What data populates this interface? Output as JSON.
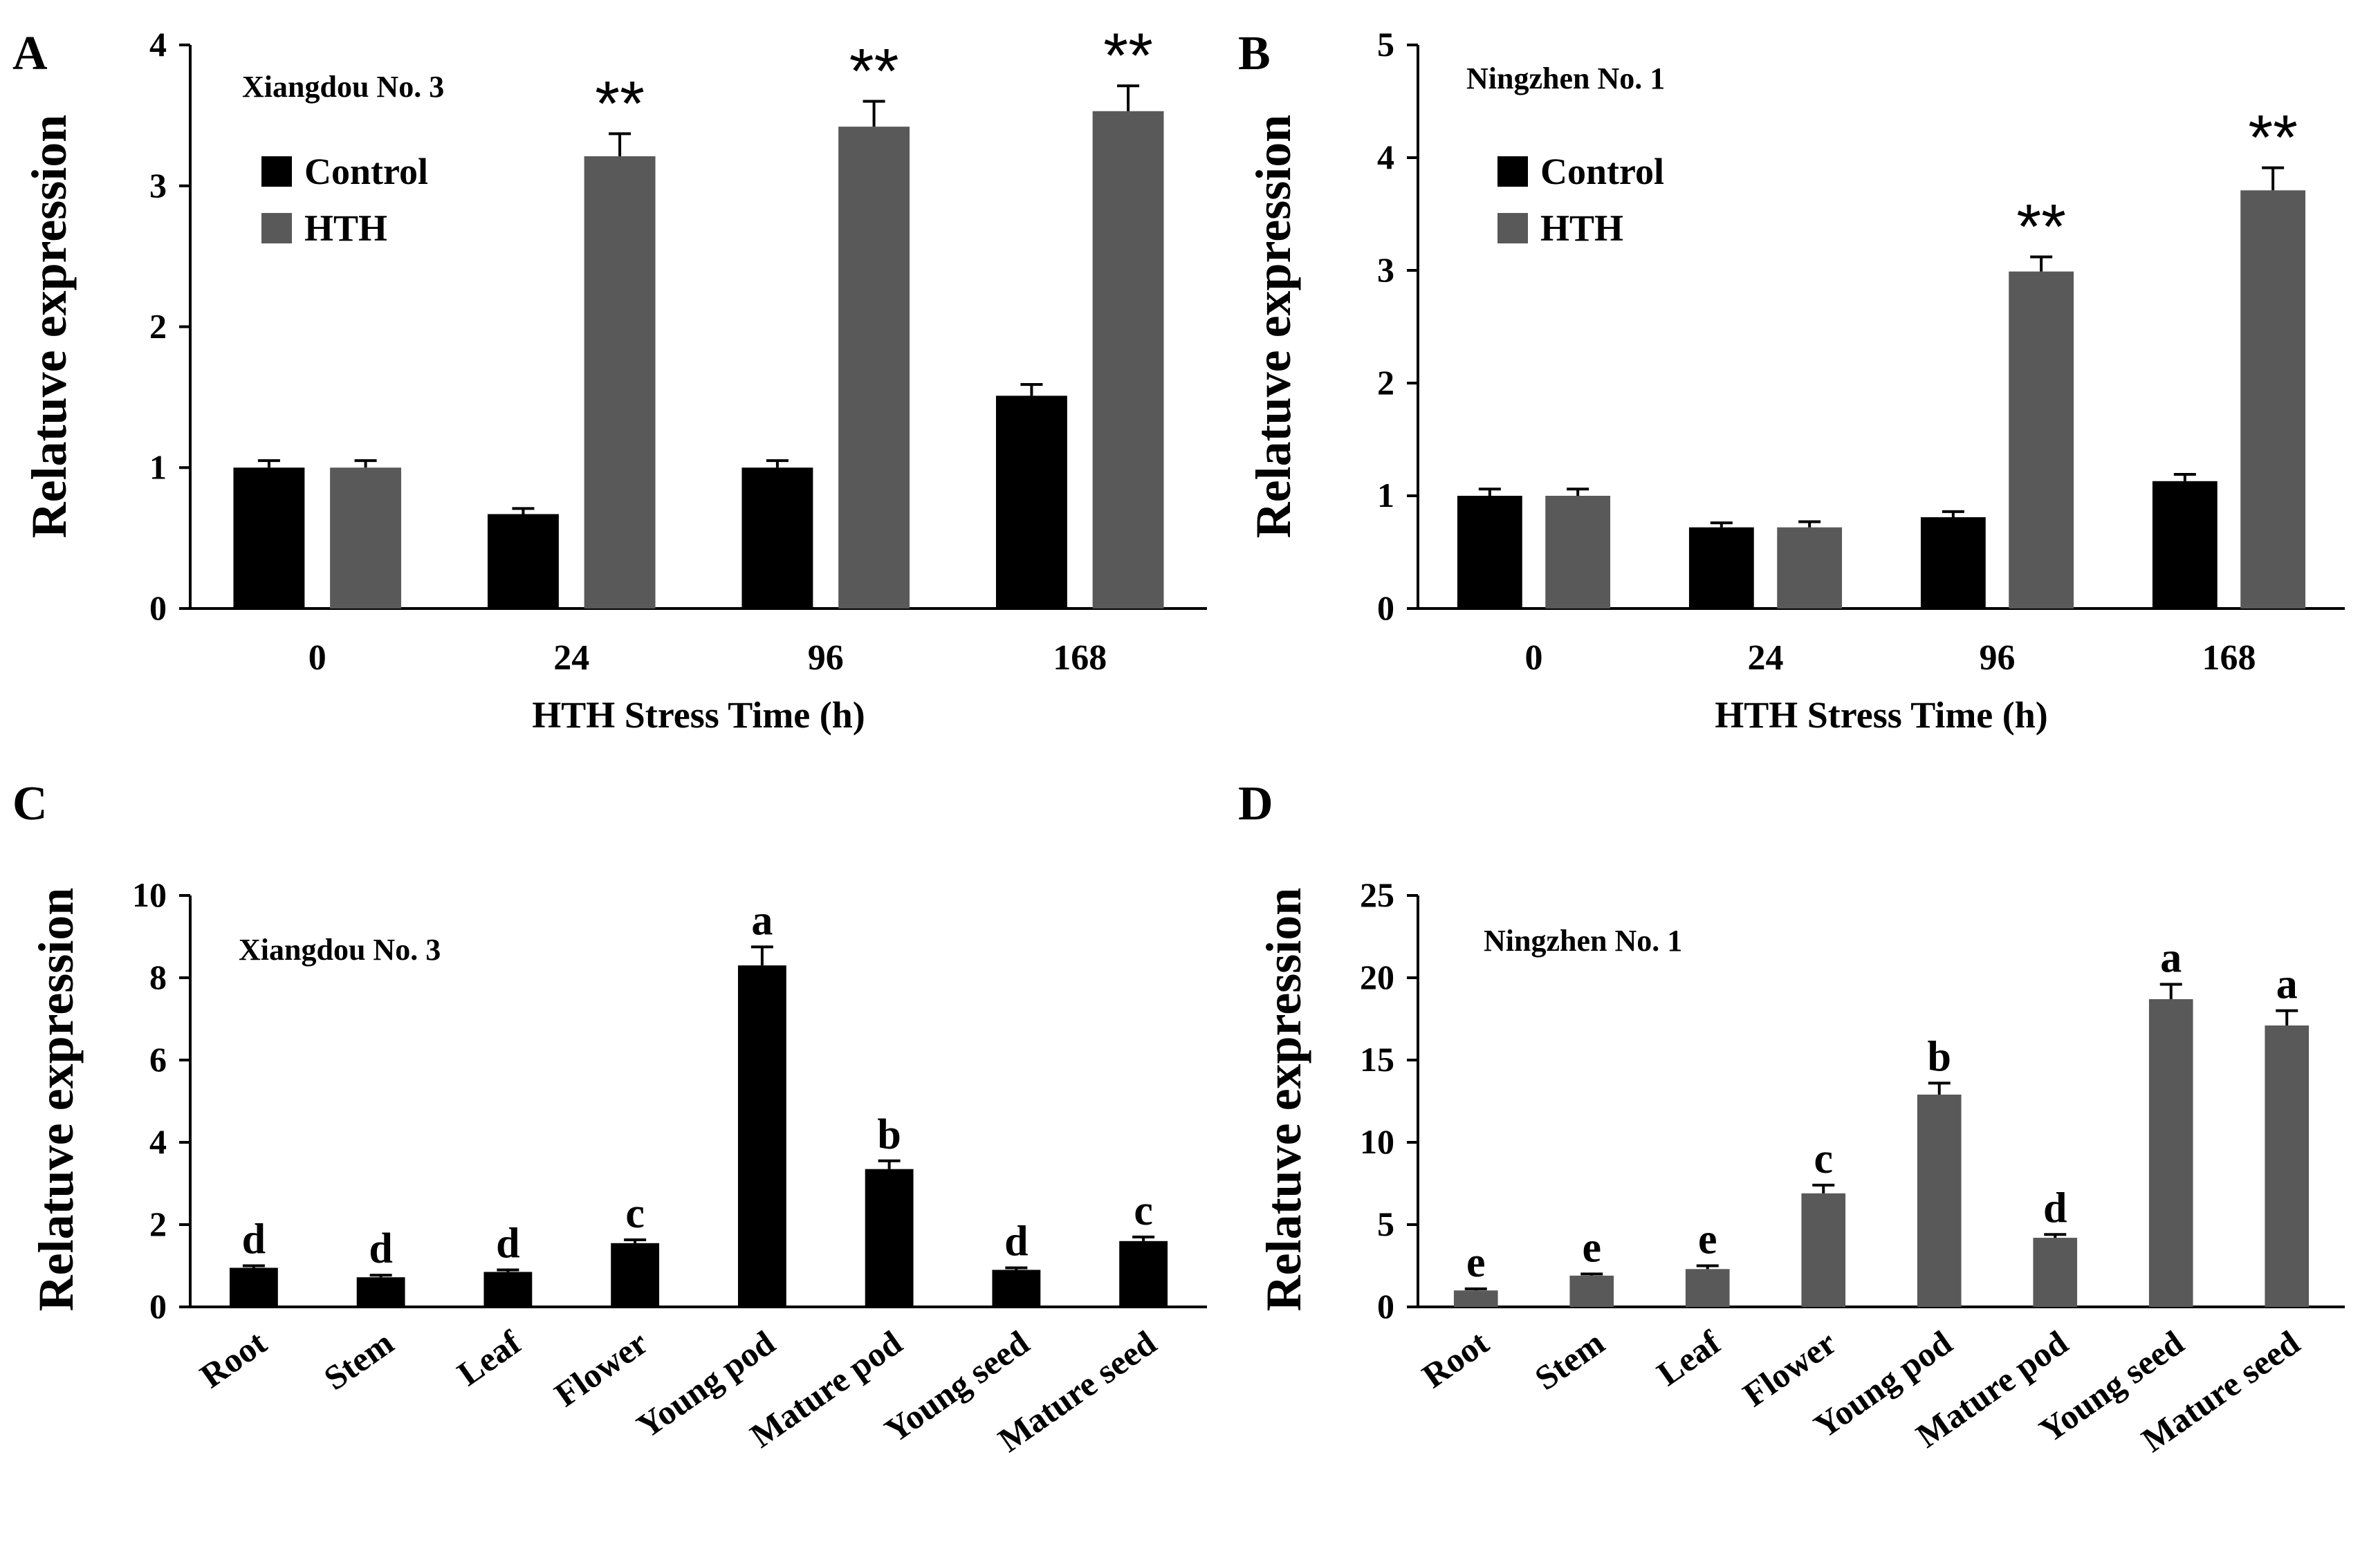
{
  "colors": {
    "control": "#000000",
    "hth": "#595959",
    "axis": "#000000"
  },
  "chart_data": [
    {
      "panel": "A",
      "type": "bar",
      "title": "Xiangdou No. 3",
      "xlabel": "HTH Stress Time (h)",
      "ylabel": "Relatuve expression",
      "ylim": [
        0,
        4
      ],
      "yticks": [
        "0",
        "1",
        "2",
        "3",
        "4"
      ],
      "categories": [
        "0",
        "24",
        "96",
        "168"
      ],
      "series": [
        {
          "name": "Control",
          "values": [
            1.0,
            0.67,
            1.0,
            1.51
          ],
          "errors": [
            0.05,
            0.04,
            0.05,
            0.08
          ]
        },
        {
          "name": "HTH",
          "values": [
            1.0,
            3.21,
            3.42,
            3.53
          ],
          "errors": [
            0.05,
            0.16,
            0.18,
            0.18
          ]
        }
      ],
      "annotations": [
        "",
        "**",
        "**",
        "**"
      ],
      "legend": "top-left"
    },
    {
      "panel": "B",
      "type": "bar",
      "title": "Ningzhen No. 1",
      "xlabel": "HTH Stress Time (h)",
      "ylabel": "Relatuve expression",
      "ylim": [
        0,
        5
      ],
      "yticks": [
        "0",
        "1",
        "2",
        "3",
        "4",
        "5"
      ],
      "categories": [
        "0",
        "24",
        "96",
        "168"
      ],
      "series": [
        {
          "name": "Control",
          "values": [
            1.0,
            0.72,
            0.81,
            1.13
          ],
          "errors": [
            0.06,
            0.04,
            0.05,
            0.06
          ]
        },
        {
          "name": "HTH",
          "values": [
            1.0,
            0.72,
            2.99,
            3.71
          ],
          "errors": [
            0.06,
            0.05,
            0.13,
            0.2
          ]
        }
      ],
      "annotations": [
        "",
        "",
        "**",
        "**"
      ],
      "legend": "top-left"
    },
    {
      "panel": "C",
      "type": "bar",
      "title": "Xiangdou No. 3",
      "xlabel": "",
      "ylabel": "Relatuve expression",
      "ylim": [
        0,
        10
      ],
      "yticks": [
        "0",
        "2",
        "4",
        "6",
        "8",
        "10"
      ],
      "categories": [
        "Root",
        "Stem",
        "Leaf",
        "Flower",
        "Young pod",
        "Mature pod",
        "Young seed",
        "Mature seed"
      ],
      "series": [
        {
          "name": "Xiangdou No. 3",
          "values": [
            0.95,
            0.72,
            0.85,
            1.55,
            8.3,
            3.35,
            0.9,
            1.6
          ],
          "errors": [
            0.05,
            0.05,
            0.05,
            0.08,
            0.45,
            0.2,
            0.05,
            0.1
          ]
        }
      ],
      "annotations": [
        "d",
        "d",
        "d",
        "c",
        "a",
        "b",
        "d",
        "c"
      ]
    },
    {
      "panel": "D",
      "type": "bar",
      "title": "Ningzhen No. 1",
      "xlabel": "",
      "ylabel": "Relatuve expression",
      "ylim": [
        0,
        25
      ],
      "yticks": [
        "0",
        "5",
        "10",
        "15",
        "20",
        "25"
      ],
      "categories": [
        "Root",
        "Stem",
        "Leaf",
        "Flower",
        "Young pod",
        "Mature pod",
        "Young seed",
        "Mature seed"
      ],
      "series": [
        {
          "name": "Ningzhen No. 1",
          "values": [
            1.0,
            1.9,
            2.3,
            6.9,
            12.9,
            4.2,
            18.7,
            17.1
          ],
          "errors": [
            0.1,
            0.1,
            0.2,
            0.5,
            0.7,
            0.2,
            0.9,
            0.9
          ]
        }
      ],
      "annotations": [
        "e",
        "e",
        "e",
        "c",
        "b",
        "d",
        "a",
        "a"
      ]
    }
  ]
}
